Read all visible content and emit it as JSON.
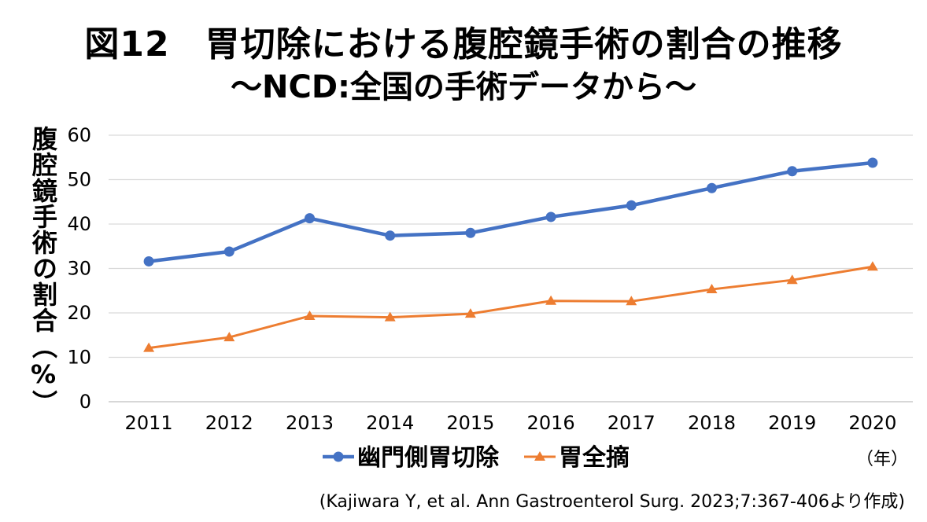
{
  "title": "図12　胃切除における腹腔鏡手術の割合の推移",
  "subtitle": "～NCD:全国の手術データから～",
  "source": "(Kajiwara Y, et al. Ann Gastroenterol Surg. 2023;7:367-406より作成)",
  "chart_data": {
    "type": "line",
    "categories": [
      "2011",
      "2012",
      "2013",
      "2014",
      "2015",
      "2016",
      "2017",
      "2018",
      "2019",
      "2020"
    ],
    "series": [
      {
        "name": "幽門側胃切除",
        "color": "#4472C4",
        "marker": "circle",
        "values": [
          31.6,
          33.8,
          41.3,
          37.4,
          38.0,
          41.6,
          44.2,
          48.1,
          51.9,
          53.8
        ]
      },
      {
        "name": "胃全摘",
        "color": "#ED7D31",
        "marker": "triangle",
        "values": [
          12.1,
          14.5,
          19.3,
          19.0,
          19.8,
          22.7,
          22.6,
          25.3,
          27.4,
          30.4
        ]
      }
    ],
    "ylabel": "腹腔鏡手術の割合（%）",
    "xlabel_unit": "（年）",
    "ylim": [
      0,
      60
    ],
    "yticks": [
      0,
      10,
      20,
      30,
      40,
      50,
      60
    ],
    "grid": true,
    "legend": "bottom"
  }
}
